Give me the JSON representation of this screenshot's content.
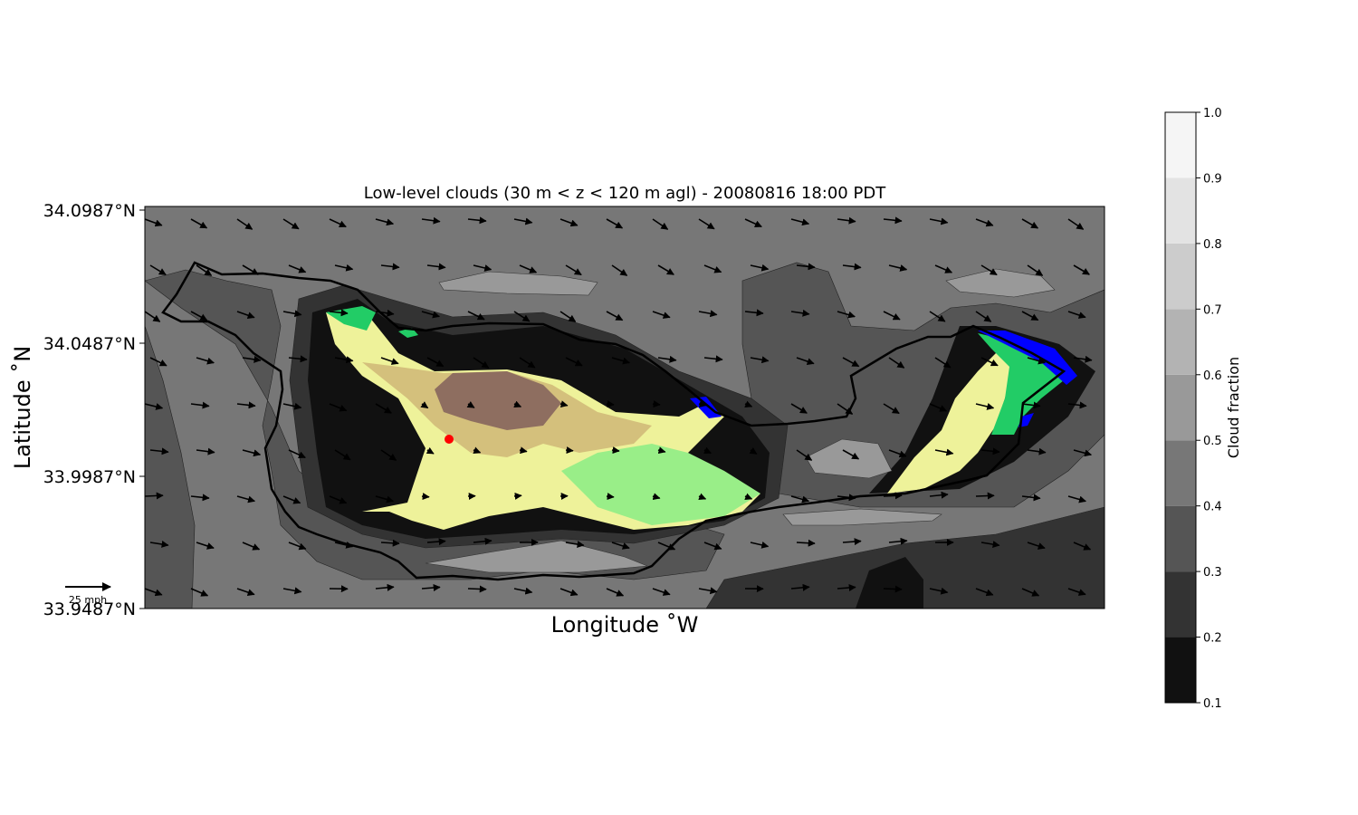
{
  "chart_data": {
    "type": "heatmap",
    "title": "Low-level clouds (30 m < z < 120 m agl) - 20080816 18:00 PDT",
    "xlabel": "Longitude $^\\circ$W",
    "ylabel": "Latitude $^\\circ$N",
    "xlabel_display": "Longitude ˚W",
    "ylabel_display": "Latitude ˚N",
    "ylim": [
      33.9487,
      34.0987
    ],
    "y_ticks": [
      {
        "value": 34.0987,
        "label": "34.0987°N"
      },
      {
        "value": 34.0487,
        "label": "34.0487°N"
      },
      {
        "value": 33.9987,
        "label": "33.9987°N"
      },
      {
        "value": 33.9487,
        "label": "33.9487°N"
      }
    ],
    "colorbar": {
      "label": "Cloud fraction",
      "ticks": [
        "0.1",
        "0.2",
        "0.3",
        "0.4",
        "0.5",
        "0.6",
        "0.7",
        "0.8",
        "0.9",
        "1.0"
      ],
      "bands": [
        {
          "from": 0.1,
          "to": 0.2,
          "color": "#111111"
        },
        {
          "from": 0.2,
          "to": 0.3,
          "color": "#333333"
        },
        {
          "from": 0.3,
          "to": 0.4,
          "color": "#555555"
        },
        {
          "from": 0.4,
          "to": 0.5,
          "color": "#777777"
        },
        {
          "from": 0.5,
          "to": 0.6,
          "color": "#999999"
        },
        {
          "from": 0.6,
          "to": 0.7,
          "color": "#b3b3b3"
        },
        {
          "from": 0.7,
          "to": 0.8,
          "color": "#cccccc"
        },
        {
          "from": 0.8,
          "to": 0.9,
          "color": "#e3e3e3"
        },
        {
          "from": 0.9,
          "to": 1.0,
          "color": "#f5f5f5"
        }
      ]
    },
    "terrain_colors": {
      "green": "#22cc66",
      "light_green": "#99ee88",
      "yellow": "#eef29a",
      "tan": "#d4c07c",
      "brown": "#8e6e60",
      "water": "#0000ff"
    },
    "marker": {
      "color": "#ff0000"
    },
    "wind_key": {
      "label": "25 mph"
    },
    "grid": false,
    "legend": "colorbar-right"
  }
}
